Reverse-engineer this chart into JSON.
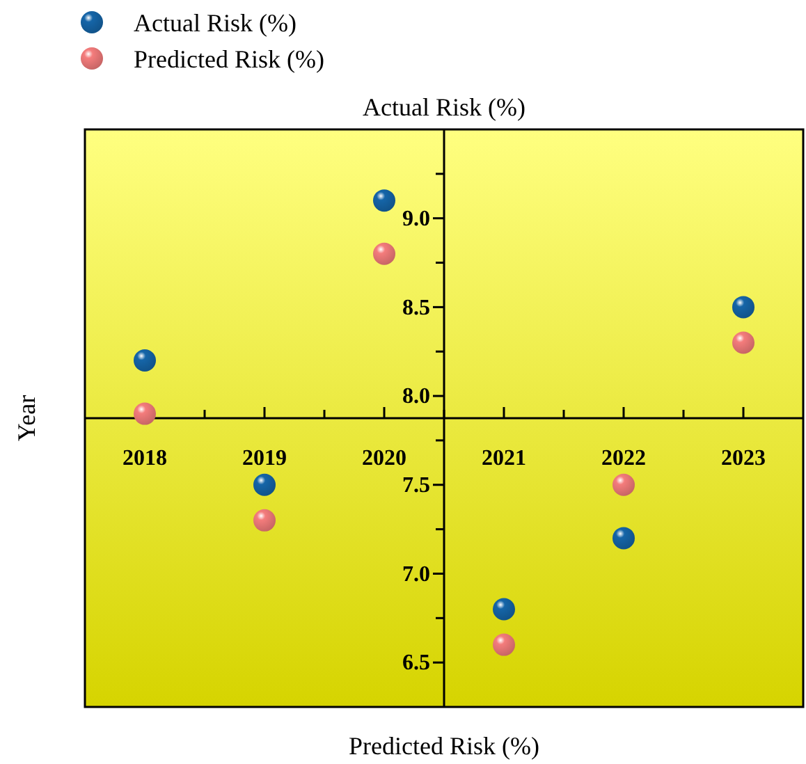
{
  "chart_data": {
    "type": "scatter",
    "title": "Actual Risk (%)",
    "xlabel": "Predicted Risk (%)",
    "ylabel": "Year",
    "x": [
      2018,
      2019,
      2020,
      2021,
      2022,
      2023
    ],
    "series": [
      {
        "name": "Actual Risk (%)",
        "color": "#1565a8",
        "values": [
          8.2,
          7.5,
          9.1,
          6.8,
          7.2,
          8.5
        ]
      },
      {
        "name": "Predicted Risk (%)",
        "color": "#f47c7c",
        "values": [
          7.9,
          7.3,
          8.8,
          6.6,
          7.5,
          8.3
        ]
      }
    ],
    "xlim": [
      2017.5,
      2023.5
    ],
    "xticks": [
      2018,
      2019,
      2020,
      2021,
      2022,
      2023
    ],
    "ylim": [
      6.25,
      9.5
    ],
    "yticks": [
      {
        "value": 6.5,
        "label": "6.5"
      },
      {
        "value": 7,
        "label": "7.0"
      },
      {
        "value": 7.5,
        "label": "7.5"
      },
      {
        "value": 8,
        "label": "8.0"
      },
      {
        "value": 8.5,
        "label": "8.5"
      },
      {
        "value": 9,
        "label": "9.0"
      }
    ],
    "marker": "circle",
    "legend": "top left",
    "grid": false
  }
}
